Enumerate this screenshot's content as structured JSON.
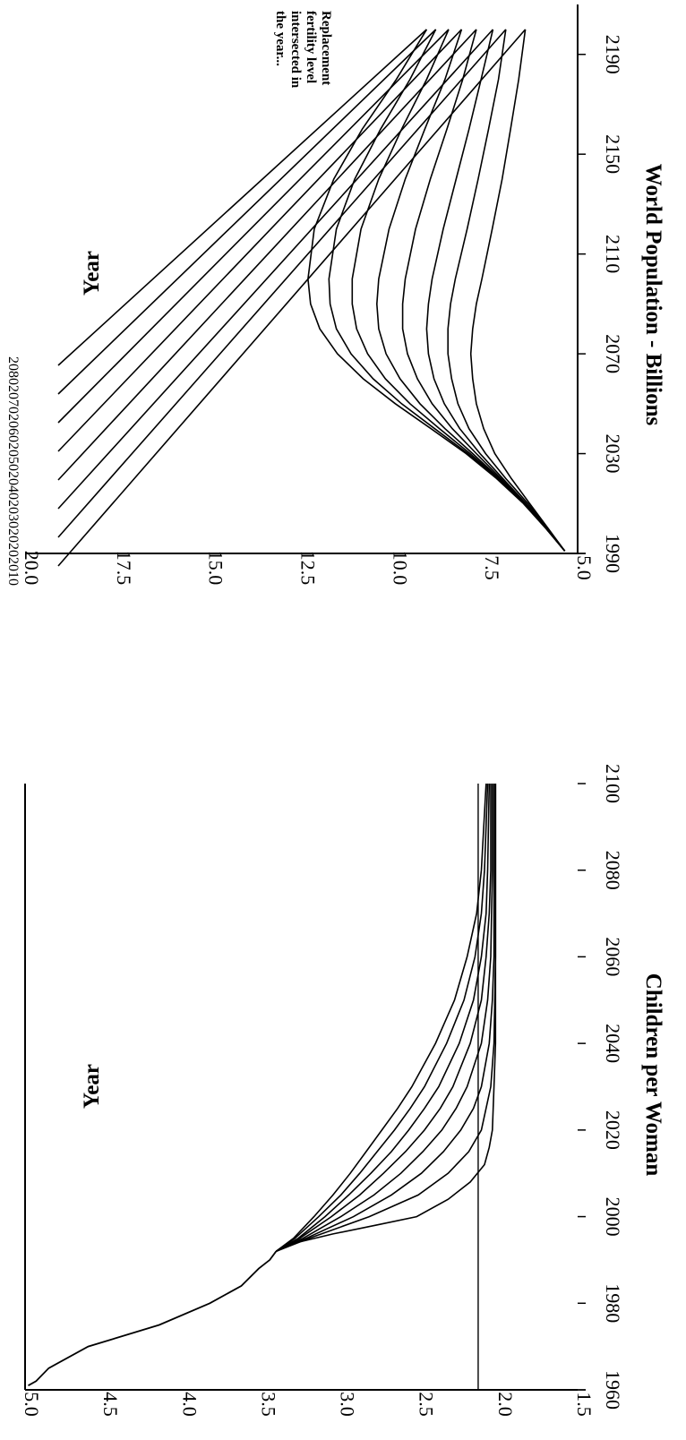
{
  "chart_data": [
    {
      "id": "fertility",
      "type": "line",
      "title": "",
      "xlabel": "Year",
      "ylabel": "Children per Woman",
      "xlim": [
        1960,
        2100
      ],
      "ylim": [
        1.5,
        5.0
      ],
      "x_ticks": [
        "1960",
        "1980",
        "2000",
        "2020",
        "2040",
        "2060",
        "2080",
        "2100"
      ],
      "y_ticks": [
        "1.5",
        "2.0",
        "2.5",
        "3.0",
        "3.5",
        "4.0",
        "4.5",
        "5.0"
      ],
      "historical": {
        "x": [
          1961,
          1962,
          1965,
          1970,
          1975,
          1980,
          1984,
          1988,
          1990,
          1992
        ],
        "y": [
          4.98,
          4.93,
          4.85,
          4.6,
          4.15,
          3.83,
          3.63,
          3.52,
          3.45,
          3.41
        ]
      },
      "replacement_level": 2.13,
      "replacement_x": [
        1960,
        2100
      ],
      "series": [
        {
          "x": [
            1992,
            1994,
            1996,
            1998,
            2000,
            2004,
            2008,
            2012,
            2016,
            2020,
            2030,
            2040,
            2060,
            2080,
            2100
          ],
          "y": [
            3.41,
            3.28,
            3.05,
            2.78,
            2.52,
            2.32,
            2.18,
            2.09,
            2.06,
            2.04,
            2.03,
            2.02,
            2.02,
            2.02,
            2.02
          ]
        },
        {
          "x": [
            1992,
            1995,
            2000,
            2005,
            2010,
            2015,
            2020,
            2030,
            2040,
            2060,
            2080,
            2100
          ],
          "y": [
            3.41,
            3.2,
            2.82,
            2.51,
            2.32,
            2.19,
            2.11,
            2.05,
            2.03,
            2.02,
            2.02,
            2.02
          ]
        },
        {
          "x": [
            1992,
            1995,
            2000,
            2005,
            2010,
            2015,
            2020,
            2025,
            2030,
            2040,
            2050,
            2060,
            2080,
            2100
          ],
          "y": [
            3.41,
            3.22,
            2.92,
            2.68,
            2.49,
            2.35,
            2.24,
            2.16,
            2.11,
            2.06,
            2.04,
            2.03,
            2.03,
            2.03
          ]
        },
        {
          "x": [
            1992,
            1995,
            2000,
            2005,
            2010,
            2015,
            2020,
            2025,
            2030,
            2040,
            2050,
            2060,
            2080,
            2100
          ],
          "y": [
            3.41,
            3.24,
            3.0,
            2.79,
            2.62,
            2.48,
            2.36,
            2.27,
            2.2,
            2.11,
            2.07,
            2.05,
            2.04,
            2.04
          ]
        },
        {
          "x": [
            1992,
            1995,
            2000,
            2005,
            2010,
            2015,
            2020,
            2025,
            2030,
            2040,
            2050,
            2060,
            2070,
            2080,
            2100
          ],
          "y": [
            3.41,
            3.26,
            3.06,
            2.88,
            2.73,
            2.59,
            2.47,
            2.37,
            2.29,
            2.18,
            2.11,
            2.08,
            2.06,
            2.05,
            2.05
          ]
        },
        {
          "x": [
            1992,
            1995,
            2000,
            2005,
            2010,
            2015,
            2020,
            2025,
            2030,
            2040,
            2050,
            2060,
            2070,
            2080,
            2100
          ],
          "y": [
            3.41,
            3.27,
            3.1,
            2.95,
            2.81,
            2.68,
            2.57,
            2.47,
            2.38,
            2.25,
            2.16,
            2.11,
            2.08,
            2.07,
            2.06
          ]
        },
        {
          "x": [
            1992,
            1995,
            2000,
            2005,
            2010,
            2015,
            2020,
            2025,
            2030,
            2040,
            2050,
            2060,
            2070,
            2080,
            2100
          ],
          "y": [
            3.41,
            3.29,
            3.14,
            3.0,
            2.88,
            2.77,
            2.66,
            2.56,
            2.47,
            2.33,
            2.22,
            2.15,
            2.11,
            2.09,
            2.07
          ]
        },
        {
          "x": [
            1992,
            1995,
            2000,
            2005,
            2010,
            2015,
            2020,
            2025,
            2030,
            2040,
            2050,
            2060,
            2070,
            2080,
            2100
          ],
          "y": [
            3.41,
            3.3,
            3.17,
            3.05,
            2.94,
            2.84,
            2.74,
            2.64,
            2.55,
            2.4,
            2.28,
            2.2,
            2.14,
            2.11,
            2.08
          ]
        }
      ]
    },
    {
      "id": "population",
      "type": "line",
      "title": "",
      "xlabel": "Year",
      "ylabel": "World Population - Billions",
      "xlim": [
        1990,
        2210
      ],
      "ylim": [
        5.0,
        20.0
      ],
      "x_ticks": [
        "1990",
        "2030",
        "2070",
        "2110",
        "2150",
        "2190"
      ],
      "y_ticks": [
        "5.0",
        "7.5",
        "10.0",
        "12.5",
        "15.0",
        "17.5",
        "20.0"
      ],
      "legend_title_lines": [
        "Replacement",
        "fertility level",
        "intersected in",
        "the year..."
      ],
      "series": [
        {
          "name": "2010",
          "x": [
            1991,
            2000,
            2010,
            2020,
            2030,
            2040,
            2050,
            2060,
            2070,
            2080,
            2090,
            2100,
            2120,
            2140,
            2160,
            2180,
            2200
          ],
          "y": [
            5.35,
            5.8,
            6.3,
            6.8,
            7.25,
            7.55,
            7.75,
            7.85,
            7.9,
            7.85,
            7.75,
            7.6,
            7.32,
            7.05,
            6.82,
            6.6,
            6.42
          ]
        },
        {
          "name": "2020",
          "x": [
            1991,
            2000,
            2010,
            2020,
            2030,
            2040,
            2050,
            2060,
            2070,
            2080,
            2090,
            2100,
            2120,
            2140,
            2160,
            2180,
            2200
          ],
          "y": [
            5.35,
            5.82,
            6.35,
            6.95,
            7.5,
            7.95,
            8.25,
            8.42,
            8.52,
            8.52,
            8.45,
            8.32,
            8.0,
            7.7,
            7.42,
            7.15,
            6.95
          ]
        },
        {
          "name": "2030",
          "x": [
            1991,
            2000,
            2010,
            2020,
            2030,
            2040,
            2050,
            2060,
            2070,
            2080,
            2090,
            2100,
            2120,
            2140,
            2160,
            2180,
            2200
          ],
          "y": [
            5.35,
            5.83,
            6.4,
            7.03,
            7.65,
            8.2,
            8.62,
            8.9,
            9.05,
            9.1,
            9.05,
            8.95,
            8.65,
            8.3,
            7.95,
            7.62,
            7.3
          ]
        },
        {
          "name": "2040",
          "x": [
            1991,
            2000,
            2010,
            2020,
            2030,
            2040,
            2050,
            2060,
            2070,
            2080,
            2090,
            2100,
            2120,
            2140,
            2160,
            2180,
            2200
          ],
          "y": [
            5.35,
            5.84,
            6.42,
            7.08,
            7.75,
            8.4,
            8.95,
            9.35,
            9.62,
            9.75,
            9.75,
            9.68,
            9.4,
            9.0,
            8.55,
            8.12,
            7.75
          ]
        },
        {
          "name": "2050",
          "x": [
            1991,
            2000,
            2010,
            2020,
            2030,
            2040,
            2050,
            2060,
            2070,
            2080,
            2090,
            2100,
            2120,
            2140,
            2160,
            2180,
            2200
          ],
          "y": [
            5.35,
            5.85,
            6.44,
            7.12,
            7.85,
            8.6,
            9.28,
            9.82,
            10.2,
            10.4,
            10.45,
            10.4,
            10.12,
            9.68,
            9.15,
            8.6,
            8.15
          ]
        },
        {
          "name": "2060",
          "x": [
            1991,
            2000,
            2010,
            2020,
            2030,
            2040,
            2050,
            2060,
            2070,
            2080,
            2090,
            2100,
            2120,
            2140,
            2160,
            2180,
            2200
          ],
          "y": [
            5.35,
            5.85,
            6.45,
            7.15,
            7.92,
            8.75,
            9.55,
            10.22,
            10.7,
            11.0,
            11.12,
            11.12,
            10.88,
            10.4,
            9.78,
            9.1,
            8.5
          ]
        },
        {
          "name": "2070",
          "x": [
            1991,
            2000,
            2010,
            2020,
            2030,
            2040,
            2050,
            2060,
            2070,
            2080,
            2090,
            2100,
            2120,
            2140,
            2160,
            2180,
            2200
          ],
          "y": [
            5.35,
            5.86,
            6.46,
            7.18,
            7.98,
            8.88,
            9.78,
            10.55,
            11.15,
            11.55,
            11.72,
            11.75,
            11.55,
            11.05,
            10.35,
            9.55,
            8.85
          ]
        },
        {
          "name": "2080",
          "x": [
            1991,
            2000,
            2010,
            2020,
            2030,
            2040,
            2050,
            2060,
            2070,
            2080,
            2090,
            2100,
            2120,
            2140,
            2160,
            2180,
            2200
          ],
          "y": [
            5.35,
            5.86,
            6.47,
            7.2,
            8.03,
            8.98,
            9.95,
            10.82,
            11.52,
            12.0,
            12.25,
            12.32,
            12.15,
            11.62,
            10.85,
            9.92,
            9.1
          ]
        }
      ]
    }
  ]
}
